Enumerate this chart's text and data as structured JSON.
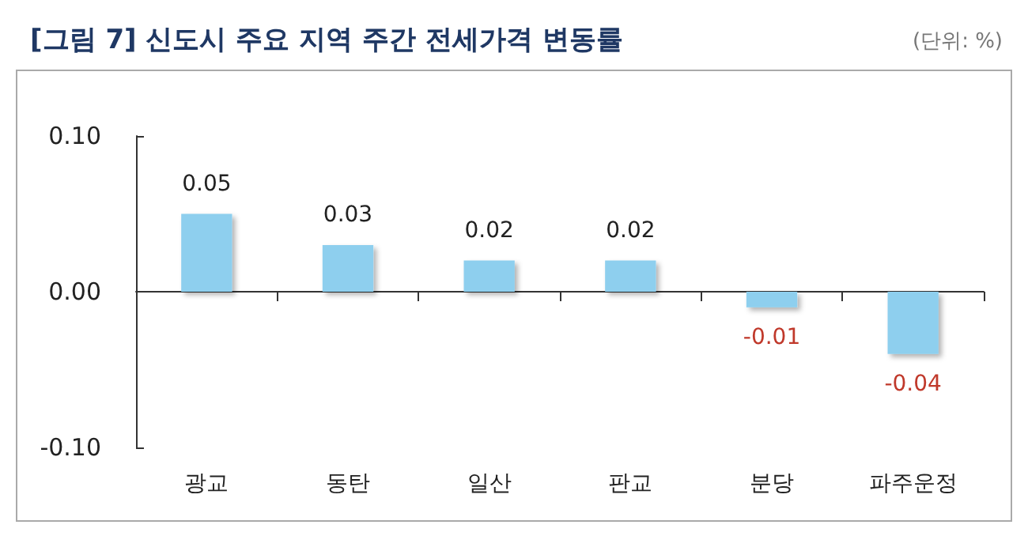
{
  "chart_data": {
    "type": "bar",
    "title": "[그림 7] 신도시 주요 지역 주간 전세가격 변동률",
    "annotations": [
      "(단위: %)"
    ],
    "categories": [
      "광교",
      "동탄",
      "일산",
      "판교",
      "분당",
      "파주운정"
    ],
    "values": [
      0.05,
      0.03,
      0.02,
      0.02,
      -0.01,
      -0.04
    ],
    "color": "#8ecfee",
    "ylim": [
      -0.1,
      0.1
    ],
    "yticks": [
      {
        "value": -0.1,
        "label": "-0.10"
      },
      {
        "value": 0,
        "label": "0.00"
      },
      {
        "value": 0.1,
        "label": "0.10"
      }
    ],
    "data_labels": true
  }
}
